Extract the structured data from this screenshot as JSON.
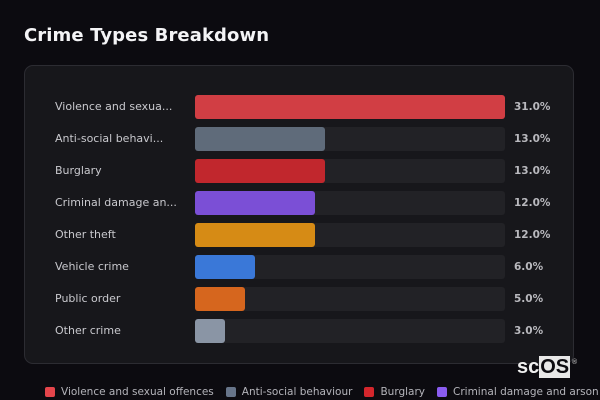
{
  "header": {
    "title": "Crime Types Breakdown"
  },
  "chart_data": {
    "type": "bar",
    "orientation": "horizontal",
    "title": "Crime Types Breakdown",
    "xlabel": "",
    "ylabel": "",
    "xlim": [
      0,
      31
    ],
    "grid": false,
    "legend_position": "bottom",
    "unit": "%",
    "categories": [
      "Violence and sexual offences",
      "Anti-social behaviour",
      "Burglary",
      "Criminal damage and arson",
      "Other theft",
      "Vehicle crime",
      "Public order",
      "Other crime"
    ],
    "values": [
      31.0,
      13.0,
      13.0,
      12.0,
      12.0,
      6.0,
      5.0,
      3.0
    ],
    "colors": [
      "#d13e44",
      "#5f6b7a",
      "#c1272d",
      "#7b4fd6",
      "#d68b15",
      "#3a78d8",
      "#d6661e",
      "#8a95a5"
    ]
  },
  "rows": [
    {
      "label": "Violence and sexua...",
      "value": "31.0%",
      "pct": 31.0,
      "color": "#d13e44"
    },
    {
      "label": "Anti-social behavi...",
      "value": "13.0%",
      "pct": 13.0,
      "color": "#5f6b7a"
    },
    {
      "label": "Burglary",
      "value": "13.0%",
      "pct": 13.0,
      "color": "#c1272d"
    },
    {
      "label": "Criminal damage an...",
      "value": "12.0%",
      "pct": 12.0,
      "color": "#7b4fd6"
    },
    {
      "label": "Other theft",
      "value": "12.0%",
      "pct": 12.0,
      "color": "#d68b15"
    },
    {
      "label": "Vehicle crime",
      "value": "6.0%",
      "pct": 6.0,
      "color": "#3a78d8"
    },
    {
      "label": "Public order",
      "value": "5.0%",
      "pct": 5.0,
      "color": "#d6661e"
    },
    {
      "label": "Other crime",
      "value": "3.0%",
      "pct": 3.0,
      "color": "#8a95a5"
    }
  ],
  "legend": [
    {
      "label": "Violence and sexual offences",
      "color": "#e5454b"
    },
    {
      "label": "Anti-social behaviour",
      "color": "#67758a"
    },
    {
      "label": "Burglary",
      "color": "#d4262c"
    },
    {
      "label": "Criminal damage and arson",
      "color": "#8a5cf0"
    }
  ],
  "logo": {
    "text_plain": "sc",
    "text_boxed": "OS",
    "mark": "®"
  }
}
